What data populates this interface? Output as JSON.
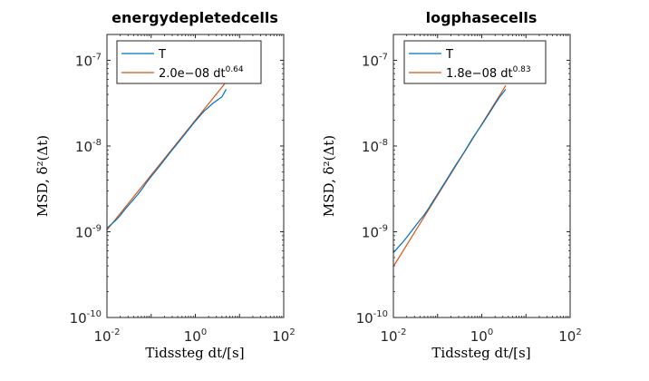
{
  "chart_data": [
    {
      "type": "line",
      "title": "energydepletedcells",
      "xlabel": "Tidssteg dt/[s]",
      "ylabel": "MSD, δ²(Δt)",
      "xscale": "log",
      "yscale": "log",
      "xlim": [
        0.01,
        100
      ],
      "ylim": [
        1e-10,
        2e-07
      ],
      "x_ticks": [
        {
          "base": "10",
          "exp": "-2"
        },
        {
          "base": "10",
          "exp": "0"
        },
        {
          "base": "10",
          "exp": "2"
        }
      ],
      "y_ticks": [
        {
          "base": "10",
          "exp": "-10"
        },
        {
          "base": "10",
          "exp": "-9"
        },
        {
          "base": "10",
          "exp": "-8"
        },
        {
          "base": "10",
          "exp": "-7"
        }
      ],
      "legend_position": "top-left",
      "series": [
        {
          "name": "T",
          "color": "#0072BD",
          "x": [
            0.01,
            0.0125,
            0.0158,
            0.02,
            0.025,
            0.0316,
            0.04,
            0.05,
            0.063,
            0.08,
            0.1,
            0.158,
            0.25,
            0.4,
            0.63,
            1.0,
            1.58,
            2.5,
            4.0,
            5.0
          ],
          "y": [
            1.1e-09,
            1.22e-09,
            1.36e-09,
            1.55e-09,
            1.8e-09,
            2.07e-09,
            2.38e-09,
            2.72e-09,
            3.18e-09,
            3.8e-09,
            4.4e-09,
            5.9e-09,
            8e-09,
            1.08e-08,
            1.45e-08,
            1.95e-08,
            2.55e-08,
            3.15e-08,
            3.75e-08,
            4.6e-08
          ]
        },
        {
          "name_parts": {
            "prefix": "2.0e−08 dt",
            "sup": "0.64"
          },
          "color": "#D95319",
          "fit": {
            "a": 2e-08,
            "b": 0.64
          },
          "x_range": [
            0.01,
            5.0
          ]
        }
      ]
    },
    {
      "type": "line",
      "title": "logphasecells",
      "xlabel": "Tidssteg dt/[s]",
      "ylabel": "MSD, δ²(Δt)",
      "xscale": "log",
      "yscale": "log",
      "xlim": [
        0.01,
        100
      ],
      "ylim": [
        1e-10,
        2e-07
      ],
      "x_ticks": [
        {
          "base": "10",
          "exp": "-2"
        },
        {
          "base": "10",
          "exp": "0"
        },
        {
          "base": "10",
          "exp": "2"
        }
      ],
      "y_ticks": [
        {
          "base": "10",
          "exp": "-10"
        },
        {
          "base": "10",
          "exp": "-9"
        },
        {
          "base": "10",
          "exp": "-8"
        },
        {
          "base": "10",
          "exp": "-7"
        }
      ],
      "legend_position": "top-left",
      "series": [
        {
          "name": "T",
          "color": "#0072BD",
          "x": [
            0.01,
            0.0125,
            0.0158,
            0.02,
            0.025,
            0.0316,
            0.04,
            0.05,
            0.063,
            0.08,
            0.1,
            0.158,
            0.25,
            0.4,
            0.63,
            1.0,
            1.58,
            2.5,
            3.5
          ],
          "y": [
            5.7e-10,
            6.5e-10,
            7.4e-10,
            8.6e-10,
            1e-09,
            1.17e-09,
            1.37e-09,
            1.58e-09,
            1.88e-09,
            2.3e-09,
            2.75e-09,
            4e-09,
            5.85e-09,
            8.5e-09,
            1.25e-08,
            1.77e-08,
            2.55e-08,
            3.7e-08,
            4.6e-08
          ]
        },
        {
          "name_parts": {
            "prefix": "1.8e−08 dt",
            "sup": "0.83"
          },
          "color": "#D95319",
          "fit": {
            "a": 1.8e-08,
            "b": 0.83
          },
          "x_range": [
            0.01,
            3.5
          ]
        }
      ]
    }
  ]
}
